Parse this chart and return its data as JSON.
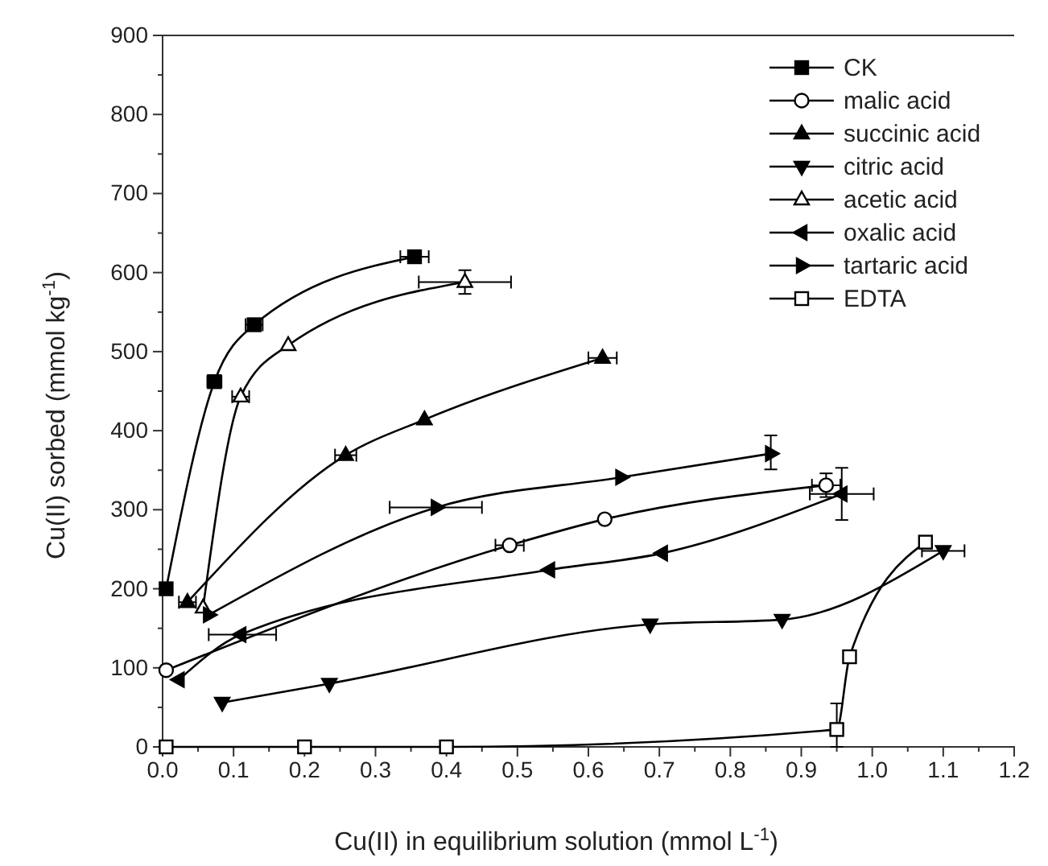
{
  "chart_data": {
    "type": "line",
    "xlabel": "Cu(II) in equilibrium solution (mmol L$^{-1}$)",
    "ylabel": "Cu(II) sorbed (mmol kg$^{-1}$)",
    "xlim": [
      0,
      1.2
    ],
    "xticks": [
      {
        "value": 0,
        "label": "0.0"
      },
      0.1,
      0.2,
      0.3,
      0.4,
      0.5,
      0.6,
      0.7,
      0.8,
      0.9,
      {
        "value": 1,
        "label": "1.0"
      },
      1.1,
      1.2
    ],
    "ylim": [
      0,
      900
    ],
    "yticks": [
      0,
      100,
      200,
      300,
      400,
      500,
      600,
      700,
      800,
      900
    ],
    "grid": false,
    "legend": "top right",
    "line_style": "solid",
    "series": [
      {
        "name": "CK",
        "marker": "square",
        "color": "#000000",
        "x": [
          0.005,
          0.073,
          0.129,
          0.355
        ],
        "values": [
          200,
          462,
          534,
          620
        ],
        "xerrors": [
          null,
          0.01,
          0.012,
          0.02
        ]
      },
      {
        "name": "malic acid",
        "marker": "circle-open",
        "color": "#000000",
        "x": [
          0.005,
          0.489,
          0.623,
          0.935
        ],
        "values": [
          97,
          255,
          288,
          331
        ],
        "xerrors": [
          null,
          0.02,
          null,
          0.02
        ],
        "errors": [
          null,
          null,
          null,
          15
        ]
      },
      {
        "name": "succinic acid",
        "marker": "triangle",
        "color": "#000000",
        "x": [
          0.035,
          0.258,
          0.369,
          0.62
        ],
        "values": [
          183,
          369,
          414,
          492
        ],
        "xerrors": [
          0.012,
          0.015,
          null,
          0.02
        ]
      },
      {
        "name": "citric acid",
        "marker": "triangle-down",
        "color": "#000000",
        "x": [
          0.084,
          0.235,
          0.687,
          0.873,
          1.1
        ],
        "values": [
          56,
          80,
          155,
          161,
          248
        ],
        "xerrors": [
          null,
          null,
          null,
          null,
          0.03
        ]
      },
      {
        "name": "acetic acid",
        "marker": "triangle-open",
        "color": "#000000",
        "x": [
          0.057,
          0.11,
          0.177,
          0.426
        ],
        "values": [
          176,
          443,
          508,
          588
        ],
        "xerrors": [
          null,
          0.012,
          null,
          0.065
        ],
        "errors": [
          null,
          null,
          null,
          15
        ]
      },
      {
        "name": "oxalic acid",
        "marker": "triangle-left",
        "color": "#000000",
        "x": [
          0.023,
          0.11,
          0.545,
          0.704,
          0.957
        ],
        "values": [
          85,
          142,
          224,
          245,
          320
        ],
        "xerrors": [
          null,
          [
            0.065,
            0.16
          ],
          null,
          null,
          0.045
        ],
        "errors": [
          null,
          null,
          null,
          null,
          33
        ]
      },
      {
        "name": "tartaric acid",
        "marker": "triangle-right",
        "color": "#000000",
        "x": [
          0.065,
          0.386,
          0.646,
          0.857
        ],
        "values": [
          167,
          303,
          341,
          371
        ],
        "xerrors": [
          null,
          [
            0.32,
            0.45
          ],
          null,
          null
        ],
        "errors": [
          null,
          null,
          null,
          [
            351,
            394
          ]
        ]
      },
      {
        "name": "EDTA",
        "marker": "square-open",
        "color": "#000000",
        "x": [
          0.005,
          0.2,
          0.4,
          0.95,
          0.968,
          1.075
        ],
        "values": [
          0,
          0,
          0,
          22,
          114,
          259
        ],
        "errors": [
          null,
          null,
          null,
          [
            0,
            55
          ],
          null,
          null
        ]
      }
    ]
  }
}
